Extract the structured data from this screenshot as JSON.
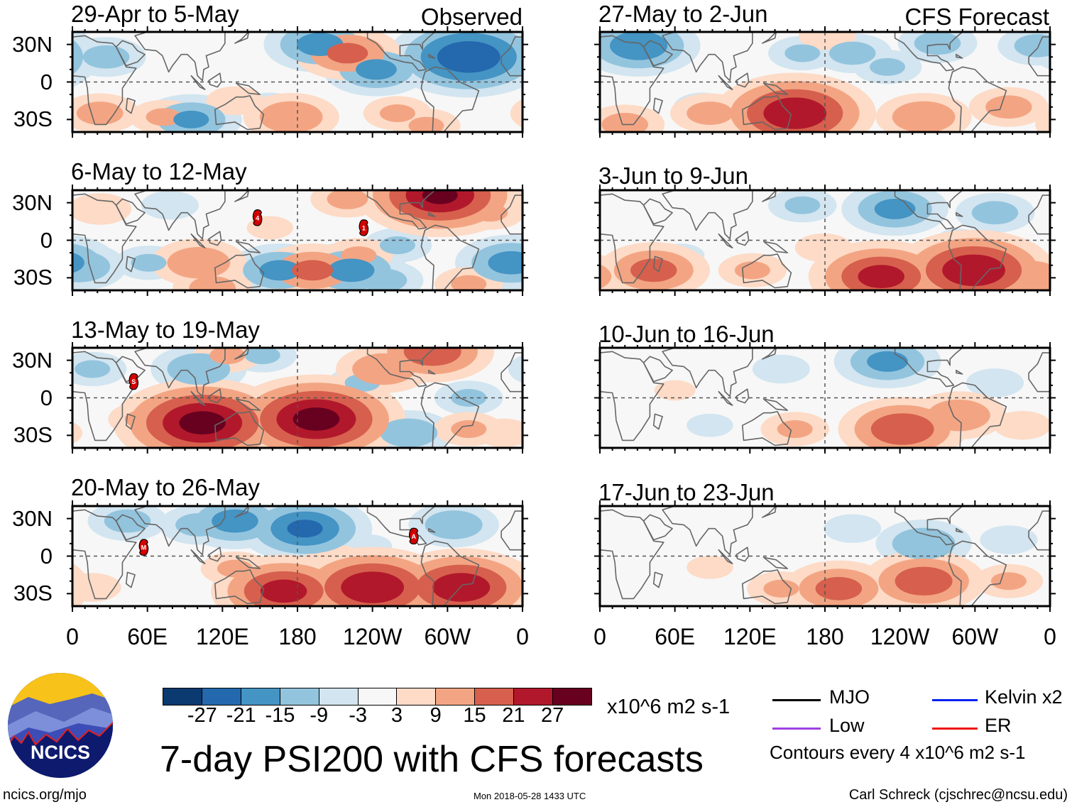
{
  "figure": {
    "title": "7-day PSI200 with CFS forecasts",
    "website": "ncics.org/mjo",
    "timestamp": "Mon 2018-05-28 1433 UTC",
    "author": "Carl Schreck (cjschrec@ncsu.edu)",
    "logo_text": "NCICS"
  },
  "column_headers": {
    "observed": "Observed",
    "forecast": "CFS Forecast"
  },
  "axes": {
    "lat_labels": [
      "30N",
      "0",
      "30S"
    ],
    "lat_values": [
      30,
      0,
      -30
    ],
    "lon_labels": [
      "0",
      "60E",
      "120E",
      "180",
      "120W",
      "60W",
      "0"
    ],
    "lon_values": [
      0,
      60,
      120,
      180,
      240,
      300,
      360
    ],
    "lat_range": [
      -40,
      40
    ],
    "lon_range": [
      0,
      360
    ]
  },
  "colorbar": {
    "labels": [
      "-27",
      "-21",
      "-15",
      "-9",
      "-3",
      "3",
      "9",
      "15",
      "21",
      "27"
    ],
    "thresholds": [
      -27,
      -21,
      -15,
      -9,
      -3,
      3,
      9,
      15,
      21,
      27
    ],
    "colors": [
      "#0a3a70",
      "#2468ae",
      "#4494c4",
      "#93c4de",
      "#d2e5f0",
      "#f7f7f7",
      "#fddbc7",
      "#f3a583",
      "#d6604d",
      "#b2182b",
      "#680020"
    ],
    "units": "x10^6 m2 s-1"
  },
  "legend": {
    "items": [
      {
        "label": "MJO",
        "color": "#000000"
      },
      {
        "label": "Kelvin x2",
        "color": "#0022ee"
      },
      {
        "label": "Low",
        "color": "#a040e0"
      },
      {
        "label": "ER",
        "color": "#ee1111"
      }
    ],
    "contour_note": "Contours every 4 x10^6 m2 s-1"
  },
  "chart_data": [
    {
      "type": "heatmap",
      "title": "29-Apr to 5-May",
      "column": "observed",
      "anomalies": [
        {
          "lon": 27,
          "lat": 20,
          "value": -12
        },
        {
          "lon": 95,
          "lat": -30,
          "value": -16
        },
        {
          "lon": 198,
          "lat": 30,
          "value": -18
        },
        {
          "lon": 243,
          "lat": 10,
          "value": -17
        },
        {
          "lon": 317,
          "lat": 20,
          "value": -27
        },
        {
          "lon": 158,
          "lat": -20,
          "value": -8
        },
        {
          "lon": 220,
          "lat": 23,
          "value": 17
        },
        {
          "lon": 22,
          "lat": -25,
          "value": 12
        },
        {
          "lon": 175,
          "lat": -28,
          "value": 15
        },
        {
          "lon": 73,
          "lat": -28,
          "value": 10
        },
        {
          "lon": 260,
          "lat": -25,
          "value": 10
        },
        {
          "lon": 130,
          "lat": -15,
          "value": 8
        },
        {
          "lon": 283,
          "lat": -35,
          "value": 10
        }
      ],
      "cyclones": []
    },
    {
      "type": "heatmap",
      "title": "6-May to 12-May",
      "column": "observed",
      "anomalies": [
        {
          "lon": 5,
          "lat": -21,
          "value": -15
        },
        {
          "lon": 61,
          "lat": -18,
          "value": -10
        },
        {
          "lon": 166,
          "lat": -24,
          "value": -17
        },
        {
          "lon": 223,
          "lat": -24,
          "value": -18
        },
        {
          "lon": 260,
          "lat": -4,
          "value": -10
        },
        {
          "lon": 351,
          "lat": -18,
          "value": -18
        },
        {
          "lon": 78,
          "lat": 28,
          "value": -8
        },
        {
          "lon": 305,
          "lat": 19,
          "value": -10
        },
        {
          "lon": 249,
          "lat": -32,
          "value": -12
        },
        {
          "lon": 294,
          "lat": 36,
          "value": 28
        },
        {
          "lon": 101,
          "lat": -18,
          "value": 15
        },
        {
          "lon": 192,
          "lat": -24,
          "value": 17
        },
        {
          "lon": 229,
          "lat": -12,
          "value": 10
        },
        {
          "lon": 22,
          "lat": 25,
          "value": 9
        },
        {
          "lon": 112,
          "lat": -38,
          "value": 12
        },
        {
          "lon": 220,
          "lat": 33,
          "value": 11
        },
        {
          "lon": 158,
          "lat": 10,
          "value": 6
        },
        {
          "lon": 334,
          "lat": 22,
          "value": 10
        },
        {
          "lon": 317,
          "lat": -35,
          "value": 10
        }
      ],
      "cyclones": [
        {
          "lon": 148,
          "lat": 18,
          "label": "4"
        },
        {
          "lon": 233,
          "lat": 10,
          "label": "1"
        }
      ]
    },
    {
      "type": "heatmap",
      "title": "13-May to 19-May",
      "column": "observed",
      "anomalies": [
        {
          "lon": 101,
          "lat": 23,
          "value": -15
        },
        {
          "lon": 16,
          "lat": 23,
          "value": -10
        },
        {
          "lon": 232,
          "lat": 12,
          "value": -10
        },
        {
          "lon": 269,
          "lat": -28,
          "value": -14
        },
        {
          "lon": 317,
          "lat": 0,
          "value": -10
        },
        {
          "lon": 169,
          "lat": -22,
          "value": -8
        },
        {
          "lon": 152,
          "lat": 34,
          "value": -10
        },
        {
          "lon": 104,
          "lat": -20,
          "value": 30
        },
        {
          "lon": 195,
          "lat": -17,
          "value": 30
        },
        {
          "lon": 249,
          "lat": 23,
          "value": 15
        },
        {
          "lon": 288,
          "lat": 37,
          "value": 20
        },
        {
          "lon": 56,
          "lat": -17,
          "value": 10
        },
        {
          "lon": 124,
          "lat": 34,
          "value": 10
        },
        {
          "lon": 317,
          "lat": -25,
          "value": 10
        },
        {
          "lon": 345,
          "lat": -28,
          "value": 8
        }
      ],
      "cyclones": [
        {
          "lon": 49,
          "lat": 13,
          "label": "S"
        }
      ]
    },
    {
      "type": "heatmap",
      "title": "20-May to 26-May",
      "column": "observed",
      "anomalies": [
        {
          "lon": 44,
          "lat": 28,
          "value": -12
        },
        {
          "lon": 130,
          "lat": 28,
          "value": -18
        },
        {
          "lon": 186,
          "lat": 22,
          "value": -22
        },
        {
          "lon": 101,
          "lat": 25,
          "value": -12
        },
        {
          "lon": 305,
          "lat": 25,
          "value": -14
        },
        {
          "lon": 340,
          "lat": -20,
          "value": -12
        },
        {
          "lon": 237,
          "lat": 8,
          "value": -6
        },
        {
          "lon": 240,
          "lat": -25,
          "value": 27
        },
        {
          "lon": 169,
          "lat": -28,
          "value": 24
        },
        {
          "lon": 311,
          "lat": -25,
          "value": 26
        },
        {
          "lon": 130,
          "lat": -10,
          "value": 10
        },
        {
          "lon": 209,
          "lat": -2,
          "value": 8
        },
        {
          "lon": 16,
          "lat": -25,
          "value": 8
        }
      ],
      "cyclones": [
        {
          "lon": 57,
          "lat": 7,
          "label": "M"
        },
        {
          "lon": 273,
          "lat": 16,
          "label": "A"
        }
      ]
    },
    {
      "type": "heatmap",
      "title": "27-May to 2-Jun",
      "column": "forecast",
      "anomalies": [
        {
          "lon": 31,
          "lat": 29,
          "value": -20
        },
        {
          "lon": 162,
          "lat": 23,
          "value": -10
        },
        {
          "lon": 202,
          "lat": 23,
          "value": -12
        },
        {
          "lon": 230,
          "lat": 12,
          "value": -10
        },
        {
          "lon": 270,
          "lat": 31,
          "value": -12
        },
        {
          "lon": 350,
          "lat": 29,
          "value": -12
        },
        {
          "lon": 82,
          "lat": -20,
          "value": -8
        },
        {
          "lon": 156,
          "lat": -25,
          "value": 27
        },
        {
          "lon": 88,
          "lat": -25,
          "value": 12
        },
        {
          "lon": 259,
          "lat": -28,
          "value": 15
        },
        {
          "lon": 327,
          "lat": -20,
          "value": 12
        },
        {
          "lon": 20,
          "lat": -34,
          "value": 12
        },
        {
          "lon": 182,
          "lat": 37,
          "value": 8
        }
      ],
      "cyclones": []
    },
    {
      "type": "heatmap",
      "title": "3-Jun to 9-Jun",
      "column": "forecast",
      "anomalies": [
        {
          "lon": 236,
          "lat": 25,
          "value": -17
        },
        {
          "lon": 162,
          "lat": 28,
          "value": -10
        },
        {
          "lon": 316,
          "lat": 22,
          "value": -12
        },
        {
          "lon": 248,
          "lat": -33,
          "value": -10
        },
        {
          "lon": 65,
          "lat": -12,
          "value": -6
        },
        {
          "lon": 287,
          "lat": 0,
          "value": -6
        },
        {
          "lon": 225,
          "lat": -29,
          "value": 24
        },
        {
          "lon": 299,
          "lat": -24,
          "value": 27
        },
        {
          "lon": 43,
          "lat": -24,
          "value": 18
        },
        {
          "lon": 122,
          "lat": -24,
          "value": 10
        },
        {
          "lon": 344,
          "lat": -29,
          "value": 15
        },
        {
          "lon": 179,
          "lat": -6,
          "value": 8
        }
      ],
      "cyclones": []
    },
    {
      "type": "heatmap",
      "title": "10-Jun to 16-Jun",
      "column": "forecast",
      "anomalies": [
        {
          "lon": 230,
          "lat": 29,
          "value": -17
        },
        {
          "lon": 145,
          "lat": 23,
          "value": -8
        },
        {
          "lon": 316,
          "lat": 12,
          "value": -8
        },
        {
          "lon": 88,
          "lat": -22,
          "value": -6
        },
        {
          "lon": 242,
          "lat": -25,
          "value": 21
        },
        {
          "lon": 287,
          "lat": -14,
          "value": 15
        },
        {
          "lon": 156,
          "lat": -25,
          "value": 10
        },
        {
          "lon": 338,
          "lat": -22,
          "value": 8
        },
        {
          "lon": 60,
          "lat": 6,
          "value": 5
        }
      ],
      "cyclones": []
    },
    {
      "type": "heatmap",
      "title": "17-Jun to 23-Jun",
      "column": "forecast",
      "anomalies": [
        {
          "lon": 259,
          "lat": 10,
          "value": -15
        },
        {
          "lon": 202,
          "lat": 22,
          "value": -8
        },
        {
          "lon": 327,
          "lat": 13,
          "value": -8
        },
        {
          "lon": 259,
          "lat": -20,
          "value": 20
        },
        {
          "lon": 191,
          "lat": -26,
          "value": 18
        },
        {
          "lon": 327,
          "lat": -20,
          "value": 10
        },
        {
          "lon": 88,
          "lat": -9,
          "value": 6
        },
        {
          "lon": 145,
          "lat": -26,
          "value": 10
        }
      ],
      "cyclones": []
    }
  ]
}
